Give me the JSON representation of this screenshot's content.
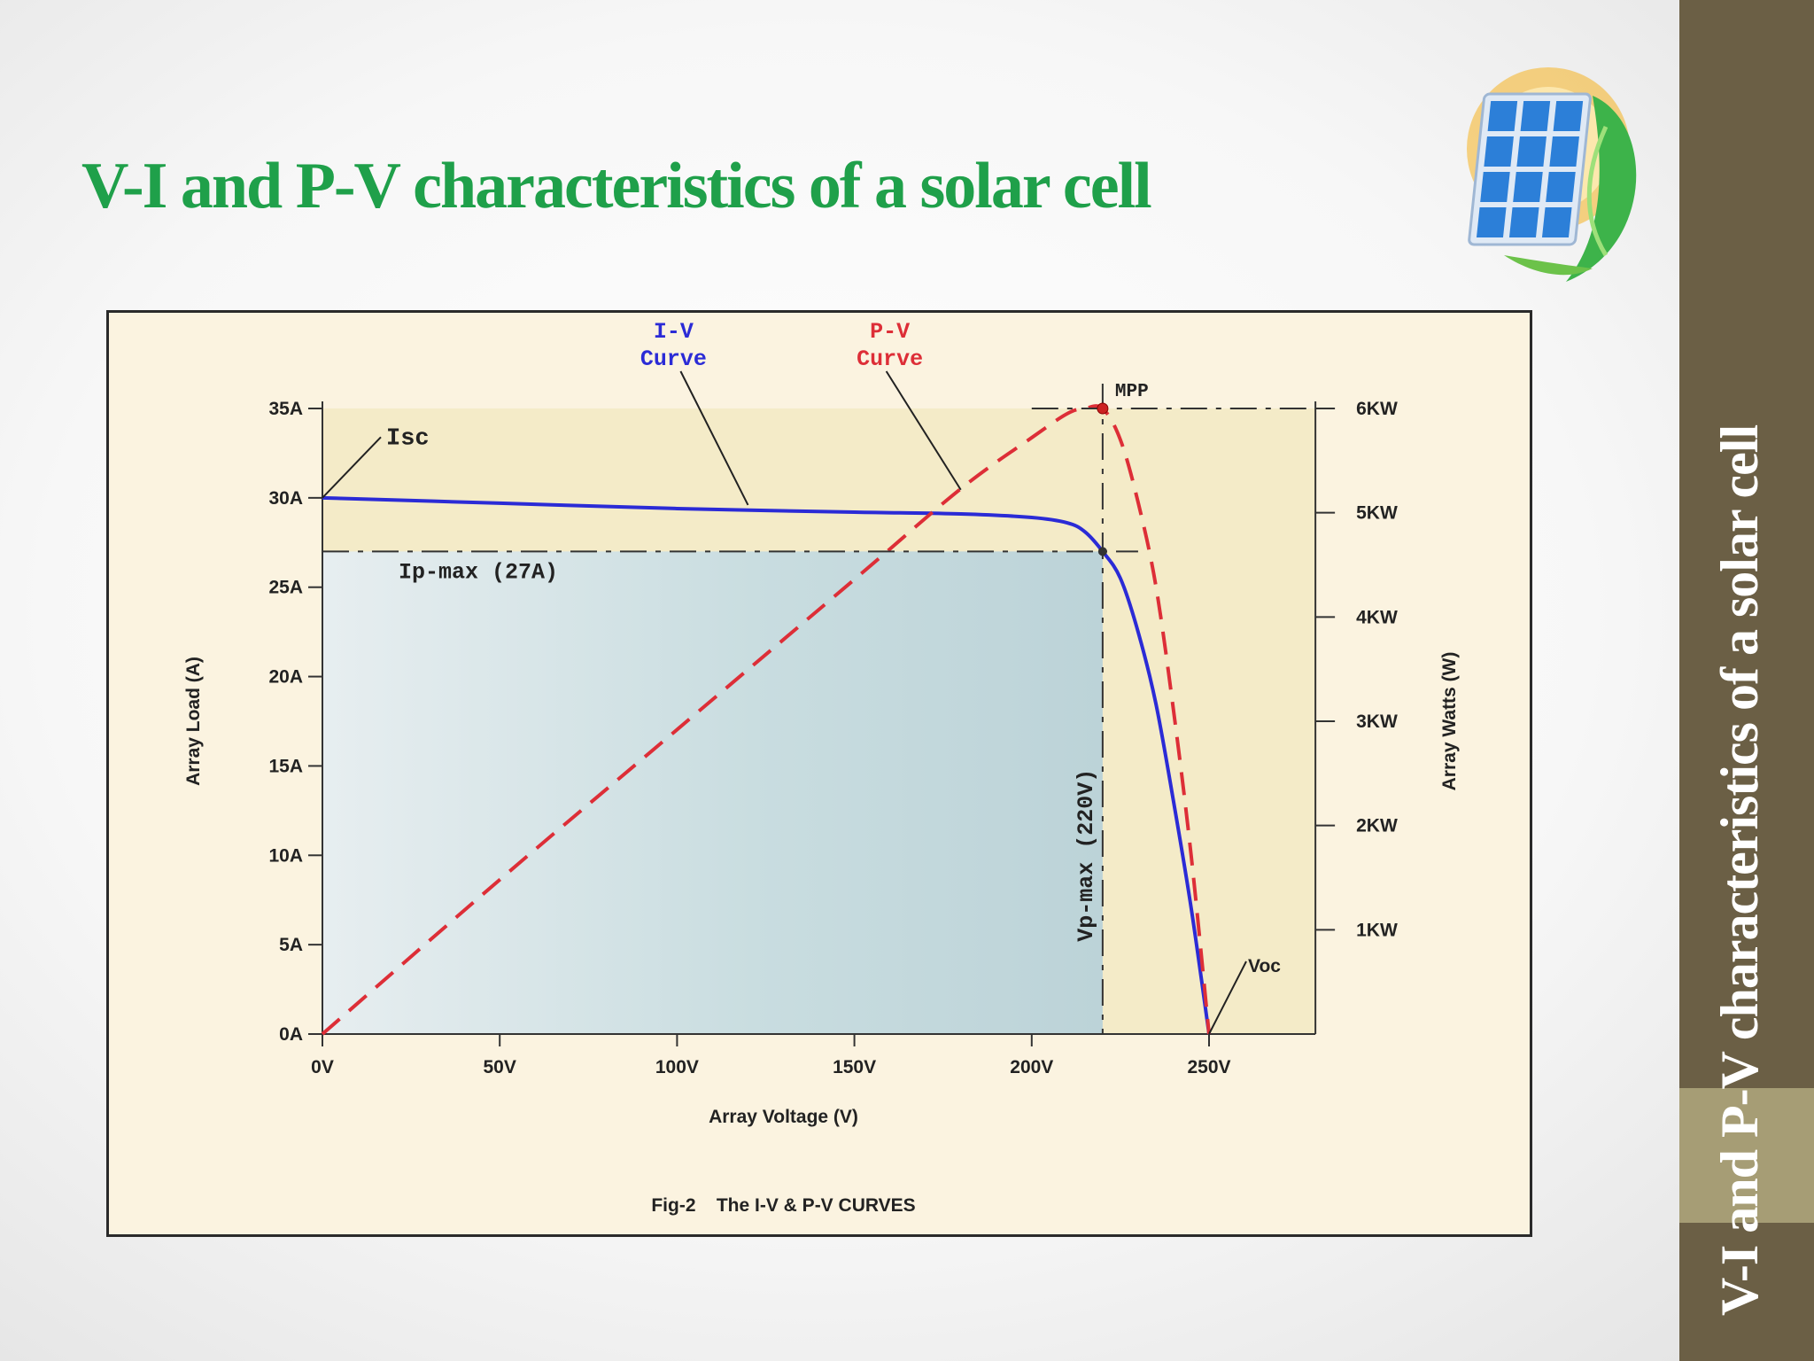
{
  "slide": {
    "title": "V-I and P-V characteristics of a solar cell",
    "side_title": "V-I and P-V characteristics of a solar cell",
    "title_color": "#1fa04a",
    "panel_color": "#6b5f45",
    "accent_color": "#a69d75"
  },
  "logo": {
    "icon": "solar-panel-leaf-icon"
  },
  "chart_data": {
    "type": "line",
    "title": "",
    "xlabel": "Array Voltage (V)",
    "ylabel": "Array Load (A)",
    "y2label": "Array Watts (W)",
    "caption": "Fig-2    The I-V & P-V CURVES",
    "xlim": [
      0,
      280
    ],
    "ylim": [
      0,
      35
    ],
    "y2lim": [
      0,
      6
    ],
    "x_ticks": [
      {
        "value": 0,
        "label": "0V"
      },
      {
        "value": 50,
        "label": "50V"
      },
      {
        "value": 100,
        "label": "100V"
      },
      {
        "value": 150,
        "label": "150V"
      },
      {
        "value": 200,
        "label": "200V"
      },
      {
        "value": 250,
        "label": "250V"
      }
    ],
    "y_ticks": [
      {
        "value": 0,
        "label": "0A"
      },
      {
        "value": 5,
        "label": "5A"
      },
      {
        "value": 10,
        "label": "10A"
      },
      {
        "value": 15,
        "label": "15A"
      },
      {
        "value": 20,
        "label": "20A"
      },
      {
        "value": 25,
        "label": "25A"
      },
      {
        "value": 30,
        "label": "30A"
      },
      {
        "value": 35,
        "label": "35A"
      }
    ],
    "y2_ticks": [
      {
        "value": 1,
        "label": "1KW"
      },
      {
        "value": 2,
        "label": "2KW"
      },
      {
        "value": 3,
        "label": "3KW"
      },
      {
        "value": 4,
        "label": "4KW"
      },
      {
        "value": 5,
        "label": "5KW"
      },
      {
        "value": 6,
        "label": "6KW"
      }
    ],
    "series": [
      {
        "name": "I-V Curve",
        "label": "I-V\nCurve",
        "color": "#2b2bd6",
        "style": "solid",
        "axis": "y",
        "x": [
          0,
          50,
          100,
          150,
          180,
          200,
          210,
          215,
          220,
          225,
          230,
          235,
          240,
          245,
          250
        ],
        "y": [
          30,
          29.7,
          29.4,
          29.2,
          29.1,
          28.9,
          28.6,
          28.1,
          27.0,
          25.5,
          22.5,
          18.5,
          13.0,
          7.0,
          0
        ]
      },
      {
        "name": "P-V Curve",
        "label": "P-V\nCurve",
        "color": "#dd2e37",
        "style": "dashed",
        "axis": "y2",
        "x": [
          0,
          50,
          100,
          150,
          180,
          200,
          210,
          215,
          220,
          225,
          230,
          235,
          240,
          245,
          250
        ],
        "y": [
          0,
          1.48,
          2.92,
          4.36,
          5.23,
          5.72,
          5.95,
          6.0,
          6.0,
          5.7,
          5.1,
          4.3,
          3.1,
          1.7,
          0
        ]
      }
    ],
    "annotations": {
      "isc": "Isc",
      "voc": "Voc",
      "mpp": "MPP",
      "ip_max": "Ip-max (27A)",
      "vp_max": "Vp-max (220V)",
      "ip_max_value": 27,
      "vp_max_value": 220,
      "mpp_power": 6
    }
  }
}
